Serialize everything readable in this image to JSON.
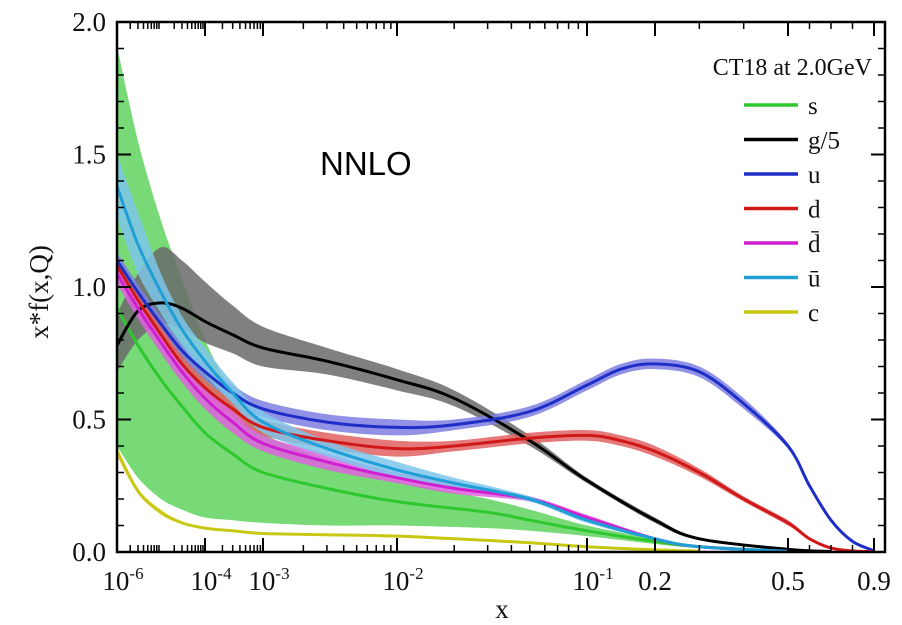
{
  "chart_data": {
    "type": "line",
    "title": "",
    "xlabel": "x",
    "ylabel": "x*f(x,Q)",
    "xscale": "nonlinear (log at small x, linear at large x)",
    "xlim": [
      1e-06,
      1.0
    ],
    "ylim": [
      0.0,
      2.0
    ],
    "legend_title": "CT18 at 2.0GeV",
    "legend_placement": "top-right",
    "annotation": "NNLO",
    "grid": false,
    "x_ticks": [
      {
        "label": "10",
        "exp": "-6",
        "value": 1e-06
      },
      {
        "label": "10",
        "exp": "-4",
        "value": 0.0001
      },
      {
        "label": "10",
        "exp": "-3",
        "value": 0.001
      },
      {
        "label": "10",
        "exp": "-2",
        "value": 0.01
      },
      {
        "label": "10",
        "exp": "-1",
        "value": 0.1
      },
      {
        "label": "0.2",
        "exp": "",
        "value": 0.2
      },
      {
        "label": "0.5",
        "exp": "",
        "value": 0.5
      },
      {
        "label": "0.9",
        "exp": "",
        "value": 0.9
      }
    ],
    "y_ticks": [
      {
        "label": "0.0",
        "value": 0.0
      },
      {
        "label": "0.5",
        "value": 0.5
      },
      {
        "label": "1.0",
        "value": 1.0
      },
      {
        "label": "1.5",
        "value": 1.5
      },
      {
        "label": "2.0",
        "value": 2.0
      }
    ],
    "series": [
      {
        "name": "s",
        "color": "#2ec72e",
        "band_color": "#5fd35f",
        "x": [
          1e-06,
          3e-06,
          1e-05,
          3e-05,
          0.0001,
          0.0003,
          0.001,
          0.003,
          0.01,
          0.03,
          0.05,
          0.1,
          0.2,
          0.3,
          0.5
        ],
        "y": [
          0.92,
          0.78,
          0.65,
          0.55,
          0.45,
          0.37,
          0.3,
          0.24,
          0.19,
          0.15,
          0.12,
          0.08,
          0.04,
          0.02,
          0.003
        ],
        "band_upper": [
          1.91,
          1.55,
          1.25,
          1.03,
          0.8,
          0.6,
          0.45,
          0.35,
          0.27,
          0.2,
          0.16,
          0.1,
          0.05,
          0.025,
          0.004
        ],
        "band_lower": [
          0.4,
          0.28,
          0.2,
          0.16,
          0.13,
          0.12,
          0.11,
          0.1,
          0.1,
          0.09,
          0.08,
          0.06,
          0.03,
          0.015,
          0.002
        ]
      },
      {
        "name": "g/5",
        "color": "#000000",
        "band_color": "#6a6a6a",
        "x": [
          1e-06,
          3e-06,
          1e-05,
          3e-05,
          0.0001,
          0.0003,
          0.001,
          0.003,
          0.01,
          0.02,
          0.05,
          0.1,
          0.2,
          0.3,
          0.5,
          0.7
        ],
        "y": [
          0.78,
          0.91,
          0.94,
          0.92,
          0.87,
          0.82,
          0.77,
          0.72,
          0.65,
          0.58,
          0.42,
          0.27,
          0.12,
          0.05,
          0.01,
          0.002
        ],
        "band_upper": [
          0.9,
          1.05,
          1.15,
          1.1,
          1.02,
          0.93,
          0.85,
          0.77,
          0.69,
          0.61,
          0.44,
          0.28,
          0.13,
          0.055,
          0.012,
          0.002
        ],
        "band_lower": [
          0.68,
          0.8,
          0.86,
          0.84,
          0.79,
          0.75,
          0.7,
          0.67,
          0.61,
          0.55,
          0.4,
          0.26,
          0.11,
          0.045,
          0.008,
          0.001
        ]
      },
      {
        "name": "u",
        "color": "#1e2fc8",
        "band_color": "#7e7ee0",
        "x": [
          1e-06,
          3e-06,
          1e-05,
          3e-05,
          0.0001,
          0.0003,
          0.001,
          0.003,
          0.01,
          0.02,
          0.05,
          0.1,
          0.15,
          0.2,
          0.3,
          0.4,
          0.5,
          0.6,
          0.7,
          0.8,
          0.9
        ],
        "y": [
          1.1,
          0.98,
          0.86,
          0.76,
          0.68,
          0.6,
          0.54,
          0.49,
          0.47,
          0.48,
          0.53,
          0.63,
          0.69,
          0.71,
          0.68,
          0.56,
          0.4,
          0.25,
          0.12,
          0.04,
          0.005
        ],
        "band_upper": [
          1.13,
          1.01,
          0.89,
          0.79,
          0.71,
          0.63,
          0.57,
          0.52,
          0.5,
          0.5,
          0.55,
          0.65,
          0.71,
          0.73,
          0.7,
          0.58,
          0.41,
          0.26,
          0.125,
          0.042,
          0.006
        ],
        "band_lower": [
          1.07,
          0.95,
          0.83,
          0.73,
          0.65,
          0.57,
          0.51,
          0.46,
          0.44,
          0.46,
          0.51,
          0.61,
          0.67,
          0.69,
          0.66,
          0.54,
          0.39,
          0.24,
          0.115,
          0.038,
          0.004
        ]
      },
      {
        "name": "d",
        "color": "#d01818",
        "band_color": "#e06060",
        "x": [
          1e-06,
          3e-06,
          1e-05,
          3e-05,
          0.0001,
          0.0003,
          0.001,
          0.003,
          0.01,
          0.02,
          0.05,
          0.1,
          0.15,
          0.2,
          0.3,
          0.4,
          0.5,
          0.6,
          0.7,
          0.8,
          0.9
        ],
        "y": [
          1.08,
          0.95,
          0.82,
          0.71,
          0.62,
          0.54,
          0.47,
          0.42,
          0.39,
          0.4,
          0.43,
          0.44,
          0.42,
          0.38,
          0.3,
          0.2,
          0.11,
          0.05,
          0.015,
          0.004,
          0.001
        ],
        "band_upper": [
          1.11,
          0.98,
          0.85,
          0.74,
          0.65,
          0.57,
          0.5,
          0.45,
          0.42,
          0.42,
          0.45,
          0.46,
          0.44,
          0.4,
          0.315,
          0.21,
          0.12,
          0.055,
          0.017,
          0.005,
          0.001
        ],
        "band_lower": [
          1.05,
          0.92,
          0.79,
          0.68,
          0.59,
          0.51,
          0.44,
          0.39,
          0.36,
          0.38,
          0.41,
          0.42,
          0.4,
          0.36,
          0.285,
          0.19,
          0.1,
          0.045,
          0.013,
          0.003,
          0.0005
        ]
      },
      {
        "name": "d̄",
        "color": "#d01fd0",
        "band_color": "#e060e0",
        "x": [
          1e-06,
          3e-06,
          1e-05,
          3e-05,
          0.0001,
          0.0003,
          0.001,
          0.003,
          0.01,
          0.02,
          0.05,
          0.1,
          0.2,
          0.3,
          0.5
        ],
        "y": [
          1.05,
          0.92,
          0.79,
          0.68,
          0.58,
          0.49,
          0.41,
          0.34,
          0.28,
          0.24,
          0.2,
          0.13,
          0.05,
          0.02,
          0.003
        ],
        "band_upper": [
          1.09,
          0.96,
          0.83,
          0.72,
          0.62,
          0.53,
          0.44,
          0.37,
          0.3,
          0.26,
          0.21,
          0.14,
          0.055,
          0.022,
          0.004
        ],
        "band_lower": [
          1.01,
          0.88,
          0.75,
          0.64,
          0.54,
          0.45,
          0.38,
          0.31,
          0.26,
          0.22,
          0.19,
          0.12,
          0.045,
          0.018,
          0.002
        ]
      },
      {
        "name": "ū",
        "color": "#1f9fd6",
        "band_color": "#7ec6ea",
        "x": [
          1e-06,
          3e-06,
          1e-05,
          3e-05,
          0.0001,
          0.0003,
          0.001,
          0.003,
          0.01,
          0.02,
          0.05,
          0.1,
          0.2,
          0.3,
          0.5
        ],
        "y": [
          1.38,
          1.16,
          0.98,
          0.84,
          0.72,
          0.6,
          0.49,
          0.39,
          0.31,
          0.26,
          0.2,
          0.12,
          0.05,
          0.02,
          0.003
        ],
        "band_upper": [
          1.5,
          1.28,
          1.05,
          0.89,
          0.77,
          0.64,
          0.53,
          0.42,
          0.34,
          0.28,
          0.21,
          0.13,
          0.055,
          0.022,
          0.004
        ],
        "band_lower": [
          1.26,
          1.05,
          0.9,
          0.78,
          0.67,
          0.56,
          0.45,
          0.36,
          0.28,
          0.24,
          0.19,
          0.11,
          0.045,
          0.018,
          0.002
        ]
      },
      {
        "name": "c",
        "color": "#c8c814",
        "band_color": "#e6e670",
        "x": [
          1e-06,
          3e-06,
          1e-05,
          3e-05,
          0.0001,
          0.0003,
          0.001,
          0.003,
          0.01,
          0.02,
          0.05,
          0.1,
          0.2,
          0.3
        ],
        "y": [
          0.38,
          0.23,
          0.15,
          0.11,
          0.09,
          0.08,
          0.07,
          0.065,
          0.06,
          0.05,
          0.035,
          0.02,
          0.008,
          0.003
        ],
        "band_upper": [
          0.4,
          0.24,
          0.16,
          0.115,
          0.095,
          0.085,
          0.075,
          0.07,
          0.065,
          0.055,
          0.038,
          0.022,
          0.009,
          0.0035
        ],
        "band_lower": [
          0.36,
          0.22,
          0.14,
          0.105,
          0.085,
          0.075,
          0.065,
          0.06,
          0.055,
          0.045,
          0.032,
          0.018,
          0.007,
          0.0025
        ]
      }
    ]
  }
}
